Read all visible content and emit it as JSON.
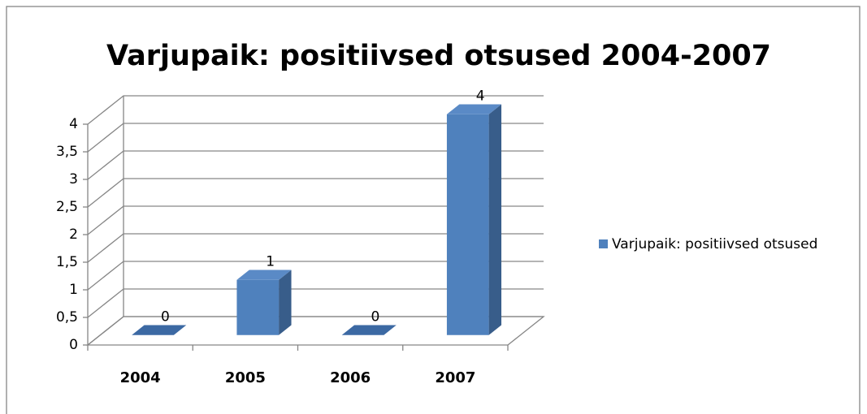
{
  "chart_data": {
    "type": "bar3d",
    "title": "Varjupaik: positiivsed otsused 2004-2007",
    "categories": [
      "2004",
      "2005",
      "2006",
      "2007"
    ],
    "series": [
      {
        "name": "Varjupaik: positiivsed otsused",
        "color": "#4f81bd",
        "values": [
          0,
          1,
          0,
          4
        ]
      }
    ],
    "ylim": [
      0,
      4
    ],
    "yticks": [
      0,
      {
        "value": 0.5,
        "label": "0,5"
      },
      1,
      {
        "value": 1.5,
        "label": "1,5"
      },
      2,
      {
        "value": 2.5,
        "label": "2,5"
      },
      3,
      {
        "value": 3.5,
        "label": "3,5"
      },
      4
    ],
    "grid": true,
    "legend": "right"
  }
}
